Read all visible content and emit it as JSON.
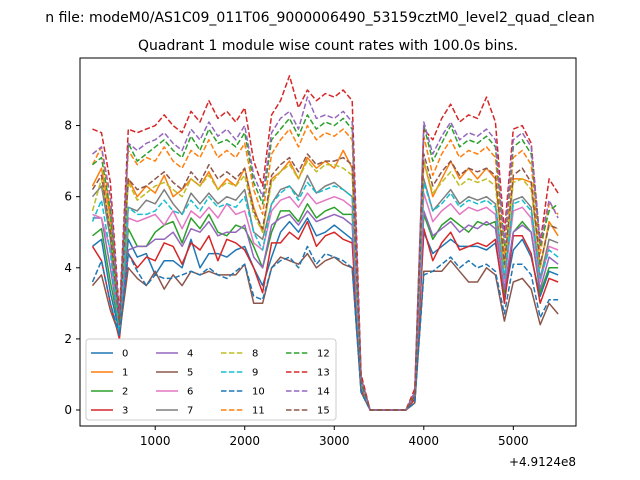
{
  "chart_data": {
    "type": "line",
    "suptitle": "n file: modeM0/AS1C09_011T06_9000006490_53159cztM0_level2_quad_clean",
    "title": "Quadrant 1 module wise count rates with 100.0s bins.",
    "x_offset_label": "+4.9124e8",
    "xlim": [
      160,
      5700
    ],
    "ylim": [
      -0.45,
      9.9
    ],
    "x_ticks": [
      1000,
      2000,
      3000,
      4000,
      5000
    ],
    "x_tick_labels": [
      "1000",
      "2000",
      "3000",
      "4000",
      "5000"
    ],
    "y_ticks": [
      0,
      2,
      4,
      6,
      8
    ],
    "y_tick_labels": [
      "0",
      "2",
      "4",
      "6",
      "8"
    ],
    "legend_location": "lower-left",
    "x": [
      300,
      400,
      500,
      600,
      700,
      800,
      900,
      1000,
      1100,
      1200,
      1300,
      1400,
      1500,
      1600,
      1700,
      1800,
      1900,
      2000,
      2100,
      2200,
      2300,
      2400,
      2500,
      2600,
      2700,
      2800,
      2900,
      3000,
      3100,
      3200,
      3300,
      3400,
      3500,
      3600,
      3700,
      3800,
      3900,
      4000,
      4100,
      4200,
      4300,
      4400,
      4500,
      4600,
      4700,
      4800,
      4900,
      5000,
      5100,
      5200,
      5300,
      5400,
      5500
    ],
    "series": [
      {
        "name": "0",
        "color": "#1f77b4",
        "dash": "solid",
        "values": [
          4.6,
          4.8,
          3.3,
          2.2,
          4.8,
          4.3,
          4.4,
          3.8,
          4.2,
          4.2,
          4.0,
          4.8,
          4.0,
          4.4,
          4.4,
          4.3,
          4.5,
          4.6,
          4.0,
          3.5,
          4.3,
          5.0,
          5.3,
          5.0,
          5.4,
          4.9,
          5.0,
          5.2,
          5.0,
          4.8,
          0.6,
          0.0,
          0.0,
          0.0,
          0.0,
          0.0,
          0.3,
          5.0,
          4.4,
          4.6,
          4.8,
          4.6,
          4.6,
          4.6,
          4.5,
          4.7,
          3.2,
          4.5,
          4.8,
          4.3,
          3.2,
          3.9,
          3.8
        ]
      },
      {
        "name": "1",
        "color": "#ff7f0e",
        "dash": "solid",
        "values": [
          6.3,
          6.8,
          5.4,
          2.6,
          6.5,
          6.0,
          6.3,
          6.1,
          6.6,
          6.0,
          6.2,
          6.5,
          6.3,
          6.7,
          6.2,
          6.5,
          6.3,
          6.8,
          5.7,
          5.0,
          6.5,
          6.7,
          7.0,
          6.5,
          7.1,
          6.8,
          7.0,
          6.8,
          7.3,
          6.8,
          0.8,
          0.0,
          0.0,
          0.0,
          0.0,
          0.0,
          0.5,
          7.0,
          6.0,
          6.5,
          7.0,
          6.5,
          6.8,
          6.5,
          6.8,
          6.5,
          4.0,
          6.5,
          6.5,
          6.4,
          4.0,
          5.3,
          4.9
        ]
      },
      {
        "name": "2",
        "color": "#2ca02c",
        "dash": "solid",
        "values": [
          4.9,
          5.1,
          3.6,
          2.3,
          5.1,
          4.6,
          4.6,
          5.0,
          5.2,
          5.3,
          4.7,
          5.4,
          5.1,
          5.5,
          5.0,
          4.9,
          5.2,
          5.1,
          4.6,
          4.0,
          5.0,
          5.6,
          5.6,
          5.3,
          5.8,
          5.4,
          5.6,
          5.7,
          5.5,
          5.5,
          0.7,
          0.0,
          0.0,
          0.0,
          0.0,
          0.0,
          0.4,
          5.5,
          4.8,
          5.2,
          5.4,
          5.2,
          5.0,
          5.3,
          5.2,
          5.3,
          3.3,
          5.0,
          5.3,
          5.0,
          3.3,
          4.0,
          4.0
        ]
      },
      {
        "name": "3",
        "color": "#d62728",
        "dash": "solid",
        "values": [
          4.6,
          4.2,
          3.0,
          2.0,
          4.4,
          4.0,
          4.3,
          4.2,
          4.7,
          4.6,
          4.1,
          4.7,
          4.5,
          4.9,
          4.2,
          4.8,
          4.7,
          4.5,
          4.0,
          3.3,
          4.7,
          4.7,
          5.0,
          4.8,
          5.3,
          4.6,
          4.9,
          5.0,
          4.8,
          4.7,
          0.6,
          0.0,
          0.0,
          0.0,
          0.0,
          0.0,
          0.3,
          5.1,
          4.2,
          4.7,
          5.0,
          4.5,
          4.6,
          4.7,
          4.6,
          4.8,
          3.0,
          4.9,
          4.9,
          4.4,
          3.0,
          3.7,
          3.6
        ]
      },
      {
        "name": "4",
        "color": "#9467bd",
        "dash": "solid",
        "values": [
          5.4,
          5.4,
          4.0,
          2.3,
          4.5,
          4.6,
          4.6,
          4.8,
          4.8,
          5.0,
          4.6,
          5.1,
          5.0,
          5.3,
          4.9,
          5.0,
          5.0,
          5.2,
          4.3,
          4.0,
          5.2,
          5.4,
          5.5,
          5.2,
          5.6,
          5.3,
          5.4,
          5.5,
          5.4,
          5.2,
          0.7,
          0.0,
          0.0,
          0.0,
          0.0,
          0.0,
          0.4,
          5.6,
          4.9,
          5.1,
          5.3,
          5.0,
          5.2,
          5.1,
          5.3,
          5.1,
          3.4,
          5.0,
          5.2,
          5.0,
          3.4,
          4.3,
          4.1
        ]
      },
      {
        "name": "5",
        "color": "#8c564b",
        "dash": "solid",
        "values": [
          3.5,
          3.8,
          2.8,
          2.1,
          4.0,
          3.7,
          3.5,
          3.9,
          3.4,
          3.8,
          3.5,
          3.9,
          3.8,
          3.9,
          3.8,
          3.8,
          3.8,
          4.1,
          3.0,
          3.0,
          4.0,
          4.3,
          4.2,
          4.1,
          4.4,
          4.0,
          4.2,
          4.3,
          4.1,
          4.0,
          0.5,
          0.0,
          0.0,
          0.0,
          0.0,
          0.0,
          0.2,
          3.9,
          3.9,
          3.9,
          4.2,
          3.9,
          3.6,
          3.6,
          4.0,
          3.8,
          2.5,
          3.6,
          3.7,
          3.4,
          2.4,
          3.0,
          2.7
        ]
      },
      {
        "name": "6",
        "color": "#e377c2",
        "dash": "solid",
        "values": [
          5.5,
          5.4,
          4.5,
          2.3,
          5.4,
          5.3,
          5.4,
          5.5,
          5.2,
          5.6,
          5.1,
          5.6,
          5.4,
          5.7,
          5.4,
          5.8,
          5.5,
          5.6,
          4.7,
          4.5,
          5.6,
          5.9,
          6.0,
          5.7,
          6.1,
          5.8,
          5.9,
          6.0,
          5.9,
          5.7,
          0.7,
          0.0,
          0.0,
          0.0,
          0.0,
          0.0,
          0.4,
          6.1,
          5.3,
          5.6,
          5.8,
          5.5,
          5.7,
          5.6,
          5.7,
          5.5,
          3.6,
          5.6,
          5.7,
          5.4,
          3.6,
          4.6,
          4.5
        ]
      },
      {
        "name": "7",
        "color": "#7f7f7f",
        "dash": "solid",
        "values": [
          6.0,
          6.3,
          4.8,
          2.4,
          5.7,
          5.6,
          5.9,
          5.8,
          6.2,
          5.8,
          5.5,
          6.1,
          5.8,
          6.1,
          5.8,
          6.0,
          5.9,
          6.2,
          5.0,
          4.8,
          5.8,
          6.2,
          6.3,
          6.0,
          6.6,
          6.1,
          6.3,
          6.4,
          6.2,
          6.0,
          0.7,
          0.0,
          0.0,
          0.0,
          0.0,
          0.0,
          0.4,
          6.5,
          5.6,
          5.9,
          6.2,
          5.8,
          6.0,
          5.9,
          6.0,
          5.8,
          3.7,
          5.9,
          6.0,
          5.7,
          3.7,
          4.8,
          4.7
        ]
      },
      {
        "name": "8",
        "color": "#bcbd22",
        "dash": "dashed",
        "values": [
          5.6,
          6.5,
          5.1,
          2.5,
          6.4,
          5.9,
          6.1,
          6.3,
          6.4,
          6.2,
          6.0,
          6.5,
          6.3,
          6.6,
          6.2,
          6.4,
          6.3,
          6.6,
          5.5,
          5.0,
          6.4,
          6.7,
          6.9,
          6.5,
          7.0,
          6.7,
          6.9,
          6.9,
          6.8,
          6.6,
          0.8,
          0.0,
          0.0,
          0.0,
          0.0,
          0.0,
          0.5,
          7.0,
          6.1,
          6.4,
          6.7,
          6.3,
          6.5,
          6.4,
          6.5,
          6.3,
          4.0,
          6.4,
          6.5,
          6.2,
          4.0,
          5.2,
          5.1
        ]
      },
      {
        "name": "9",
        "color": "#17becf",
        "dash": "dashed",
        "values": [
          5.3,
          5.9,
          4.4,
          2.2,
          5.7,
          5.5,
          5.5,
          5.6,
          5.9,
          5.6,
          5.5,
          5.9,
          5.6,
          6.0,
          5.7,
          5.8,
          5.7,
          6.0,
          5.0,
          4.5,
          5.8,
          6.1,
          6.3,
          5.9,
          6.4,
          6.1,
          6.2,
          6.3,
          6.2,
          6.0,
          0.7,
          0.0,
          0.0,
          0.0,
          0.0,
          0.0,
          0.4,
          6.4,
          5.6,
          5.8,
          6.1,
          5.7,
          5.9,
          5.8,
          5.9,
          5.7,
          3.7,
          5.8,
          5.9,
          5.6,
          3.7,
          4.5,
          4.3
        ]
      },
      {
        "name": "10",
        "color": "#1f77b4",
        "dash": "dashed",
        "values": [
          3.6,
          4.2,
          3.0,
          2.1,
          4.4,
          3.9,
          3.5,
          3.8,
          3.7,
          3.7,
          3.8,
          3.9,
          3.8,
          4.0,
          3.8,
          3.7,
          3.9,
          4.1,
          3.2,
          3.1,
          4.0,
          4.2,
          4.3,
          4.0,
          4.6,
          4.1,
          4.4,
          4.3,
          4.2,
          4.0,
          0.5,
          0.0,
          0.0,
          0.0,
          0.0,
          0.0,
          0.2,
          3.8,
          3.9,
          4.1,
          4.3,
          4.0,
          4.2,
          4.0,
          4.1,
          3.9,
          2.7,
          4.1,
          4.1,
          3.8,
          2.6,
          3.1,
          3.1
        ]
      },
      {
        "name": "11",
        "color": "#ff7f0e",
        "dash": "dashed",
        "values": [
          6.9,
          7.4,
          5.6,
          2.6,
          7.3,
          6.9,
          7.1,
          7.0,
          7.4,
          7.0,
          6.8,
          7.3,
          7.1,
          7.6,
          7.1,
          7.3,
          7.1,
          7.5,
          6.2,
          5.5,
          7.2,
          7.6,
          7.9,
          7.4,
          8.0,
          7.6,
          7.8,
          7.7,
          7.9,
          7.6,
          0.9,
          0.0,
          0.0,
          0.0,
          0.0,
          0.0,
          0.5,
          7.7,
          6.6,
          7.2,
          7.6,
          7.1,
          7.3,
          7.2,
          7.4,
          7.1,
          4.4,
          7.1,
          7.3,
          6.9,
          4.4,
          5.8,
          5.5
        ]
      },
      {
        "name": "12",
        "color": "#2ca02c",
        "dash": "dashed",
        "values": [
          6.9,
          7.1,
          5.6,
          2.5,
          7.5,
          7.0,
          7.2,
          7.4,
          7.6,
          7.3,
          7.1,
          7.7,
          7.3,
          7.9,
          7.5,
          7.6,
          7.4,
          7.8,
          6.4,
          5.8,
          7.6,
          7.9,
          8.2,
          7.7,
          8.3,
          7.9,
          8.1,
          8.0,
          8.2,
          7.9,
          0.9,
          0.0,
          0.0,
          0.0,
          0.0,
          0.0,
          0.5,
          8.0,
          7.0,
          7.5,
          8.0,
          7.4,
          7.6,
          7.5,
          7.7,
          7.4,
          4.6,
          7.4,
          7.6,
          7.2,
          4.6,
          5.6,
          5.8
        ]
      },
      {
        "name": "13",
        "color": "#d62728",
        "dash": "dashed",
        "values": [
          7.9,
          7.8,
          6.4,
          2.7,
          7.9,
          7.8,
          7.9,
          8.0,
          8.3,
          8.0,
          7.8,
          8.4,
          8.1,
          8.7,
          8.2,
          8.4,
          8.1,
          8.5,
          7.0,
          6.3,
          8.3,
          8.7,
          9.4,
          8.5,
          9.0,
          8.7,
          8.9,
          8.8,
          9.0,
          8.7,
          1.0,
          0.0,
          0.0,
          0.0,
          0.0,
          0.0,
          0.6,
          7.9,
          7.6,
          8.2,
          8.6,
          8.1,
          8.3,
          8.2,
          8.8,
          8.1,
          5.0,
          7.9,
          8.0,
          7.5,
          4.7,
          6.5,
          6.1
        ]
      },
      {
        "name": "14",
        "color": "#9467bd",
        "dash": "dashed",
        "values": [
          7.2,
          7.4,
          6.0,
          2.6,
          7.5,
          7.3,
          7.5,
          7.6,
          7.8,
          7.5,
          7.3,
          7.9,
          7.6,
          8.1,
          7.7,
          7.9,
          7.6,
          8.0,
          6.6,
          6.0,
          7.8,
          8.2,
          8.4,
          7.9,
          8.8,
          8.2,
          8.3,
          8.2,
          8.4,
          8.1,
          0.9,
          0.0,
          0.0,
          0.0,
          0.0,
          0.0,
          0.5,
          8.1,
          7.2,
          7.7,
          8.1,
          7.6,
          7.8,
          7.7,
          7.9,
          7.6,
          4.7,
          7.6,
          7.8,
          7.4,
          4.7,
          5.9,
          5.4
        ]
      },
      {
        "name": "15",
        "color": "#8c564b",
        "dash": "dashed",
        "values": [
          6.2,
          6.6,
          5.0,
          2.4,
          6.5,
          6.2,
          6.3,
          6.5,
          6.7,
          6.4,
          6.2,
          6.7,
          6.4,
          6.9,
          6.5,
          6.7,
          6.5,
          6.8,
          5.6,
          5.1,
          6.6,
          6.9,
          7.1,
          6.7,
          7.2,
          6.9,
          7.0,
          7.0,
          7.1,
          6.9,
          0.8,
          0.0,
          0.0,
          0.0,
          0.0,
          0.0,
          0.4,
          7.2,
          6.3,
          6.7,
          7.0,
          6.6,
          6.8,
          6.7,
          6.8,
          6.6,
          4.1,
          6.6,
          6.8,
          6.4,
          4.1,
          5.2,
          5.1
        ]
      }
    ]
  }
}
